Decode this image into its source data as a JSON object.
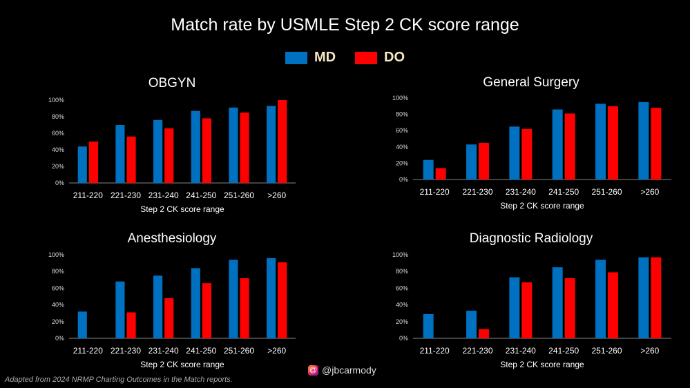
{
  "title": "Match rate by USMLE Step 2 CK score range",
  "legend": [
    {
      "label": "MD",
      "color": "#0070c0"
    },
    {
      "label": "DO",
      "color": "#ff0000"
    }
  ],
  "footer": "Adapted from 2024 NRMP Charting Outcomes in the Match reports.",
  "handle": "@jbcarmody",
  "chart_data": [
    {
      "type": "bar",
      "title": "OBGYN",
      "xlabel": "Step 2 CK score range",
      "ylabel": "",
      "ylim": [
        0,
        100
      ],
      "yticks": [
        "0%",
        "20%",
        "40%",
        "60%",
        "80%",
        "100%"
      ],
      "categories": [
        "211-220",
        "221-230",
        "231-240",
        "241-250",
        "251-260",
        ">260"
      ],
      "series": [
        {
          "name": "MD",
          "values": [
            44,
            70,
            76,
            87,
            91,
            93
          ]
        },
        {
          "name": "DO",
          "values": [
            50,
            56,
            66,
            78,
            85,
            100
          ]
        }
      ]
    },
    {
      "type": "bar",
      "title": "General Surgery",
      "xlabel": "Step 2 CK score range",
      "ylabel": "",
      "ylim": [
        0,
        100
      ],
      "yticks": [
        "0%",
        "20%",
        "40%",
        "60%",
        "80%",
        "100%"
      ],
      "categories": [
        "211-220",
        "221-230",
        "231-240",
        "241-250",
        "251-260",
        ">260"
      ],
      "series": [
        {
          "name": "MD",
          "values": [
            24,
            43,
            65,
            86,
            93,
            95
          ]
        },
        {
          "name": "DO",
          "values": [
            14,
            45,
            62,
            81,
            90,
            88
          ]
        }
      ]
    },
    {
      "type": "bar",
      "title": "Anesthesiology",
      "xlabel": "Step 2 CK score range",
      "ylabel": "",
      "ylim": [
        0,
        100
      ],
      "yticks": [
        "0%",
        "20%",
        "40%",
        "60%",
        "80%",
        "100%"
      ],
      "categories": [
        "211-220",
        "221-230",
        "231-240",
        "241-250",
        "251-260",
        ">260"
      ],
      "series": [
        {
          "name": "MD",
          "values": [
            32,
            68,
            75,
            84,
            94,
            96
          ]
        },
        {
          "name": "DO",
          "values": [
            0,
            31,
            48,
            66,
            72,
            91
          ]
        }
      ]
    },
    {
      "type": "bar",
      "title": "Diagnostic Radiology",
      "xlabel": "Step 2 CK score range",
      "ylabel": "",
      "ylim": [
        0,
        100
      ],
      "yticks": [
        "0%",
        "20%",
        "40%",
        "60%",
        "80%",
        "100%"
      ],
      "categories": [
        "211-220",
        "221-230",
        "231-240",
        "241-250",
        "251-260",
        ">260"
      ],
      "series": [
        {
          "name": "MD",
          "values": [
            29,
            33,
            73,
            85,
            94,
            97
          ]
        },
        {
          "name": "DO",
          "values": [
            0,
            11,
            67,
            72,
            79,
            97
          ]
        }
      ]
    }
  ]
}
